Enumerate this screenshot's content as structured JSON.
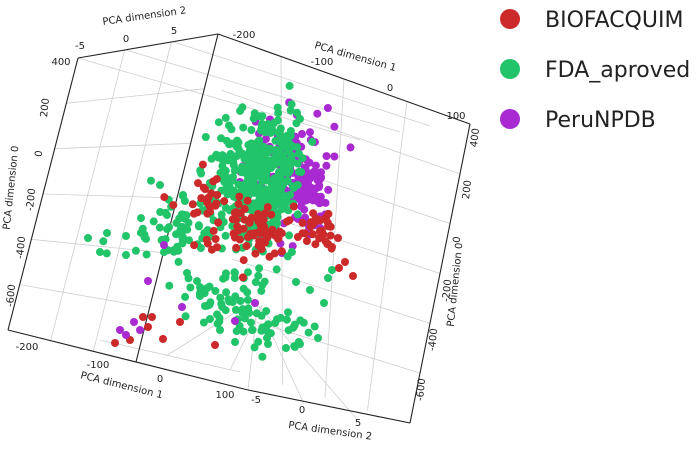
{
  "chart_data": {
    "type": "scatter",
    "title": "",
    "legend_placement": "top-right",
    "grid": true,
    "axes": {
      "x": {
        "label": "PCA dimension 1",
        "ticks": [
          "-200",
          "-100",
          "0",
          "100"
        ]
      },
      "y": {
        "label": "PCA dimension 2",
        "ticks": [
          "-5",
          "0",
          "5"
        ]
      },
      "z": {
        "label": "PCA dimension 0",
        "ticks": [
          "400",
          "200",
          "0",
          "-200",
          "-400",
          "-600"
        ]
      }
    },
    "axis_labels": {
      "pca1_top": "PCA dimension 1",
      "pca2_top": "PCA dimension 2",
      "pca0_left": "PCA dimension 0",
      "pca0_right": "PCA dimension 0",
      "pca1_bottom": "PCA dimension 1",
      "pca2_bottom": "PCA dimension 2"
    },
    "tick_labels": {
      "pca2_top": [
        "-5",
        "0",
        "5"
      ],
      "pca1_top": [
        "-200",
        "-100",
        "0",
        "100"
      ],
      "pca0_left": [
        "400",
        "200",
        "0",
        "-200",
        "-400",
        "-600"
      ],
      "pca0_right": [
        "400",
        "200",
        "0",
        "-200",
        "-400",
        "-600"
      ],
      "pca1_bottom": [
        "-200",
        "-100",
        "0",
        "100"
      ],
      "pca2_bottom": [
        "-5",
        "0",
        "5"
      ]
    },
    "series": [
      {
        "name": "BIOFACQUIM",
        "color": "#cc2a2a"
      },
      {
        "name": "FDA_aproved",
        "color": "#22c46a"
      },
      {
        "name": "PeruNPDB",
        "color": "#a82ad0"
      }
    ]
  }
}
